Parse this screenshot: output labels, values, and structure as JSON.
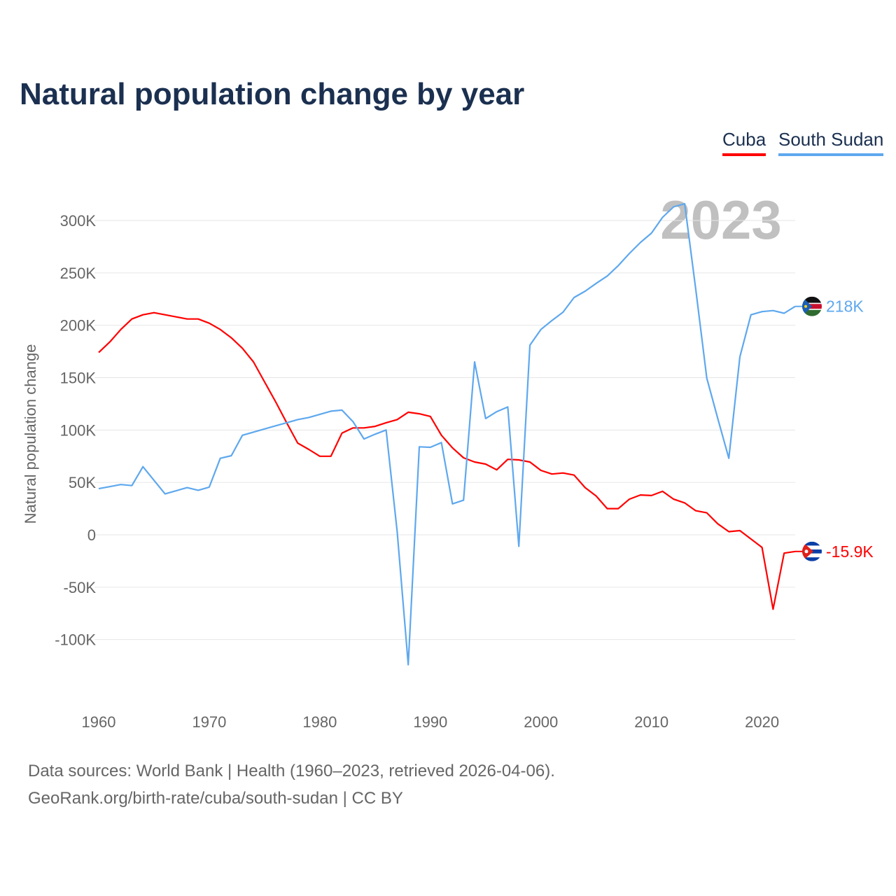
{
  "title": "Natural population change by year",
  "legend": [
    {
      "label": "Cuba",
      "color": "#ff0000"
    },
    {
      "label": "South Sudan",
      "color": "#5ea8ee"
    }
  ],
  "footer": {
    "line1": "Data sources: World Bank | Health (1960–2023, retrieved 2026-04-06).",
    "line2": "GeoRank.org/birth-rate/cuba/south-sudan | CC BY"
  },
  "chart_data": {
    "type": "line",
    "title": "Natural population change by year",
    "xlabel": "",
    "ylabel": "Natural population change",
    "year_watermark": "2023",
    "xlim": [
      1960,
      2023
    ],
    "ylim": [
      -125000,
      320000
    ],
    "x_ticks": [
      1960,
      1970,
      1980,
      1990,
      2000,
      2010,
      2020
    ],
    "x_tick_labels": [
      "1960",
      "1970",
      "1980",
      "1990",
      "2000",
      "2010",
      "2020"
    ],
    "y_ticks": [
      -100000,
      -50000,
      0,
      50000,
      100000,
      150000,
      200000,
      250000,
      300000
    ],
    "y_tick_labels": [
      "-100K",
      "-50K",
      "0",
      "50K",
      "100K",
      "150K",
      "200K",
      "250K",
      "300K"
    ],
    "grid": true,
    "legend_position": "top-right",
    "x_start": 1960,
    "series": [
      {
        "name": "Cuba",
        "color": "#ff0000",
        "end_label": "-15.9K",
        "flag": "cuba-flag",
        "values": [
          174000,
          184000,
          196000,
          206000,
          210000,
          212000,
          210000,
          208000,
          206000,
          206000,
          202000,
          196000,
          188000,
          178000,
          165000,
          146000,
          127000,
          107000,
          87500,
          81500,
          75000,
          75000,
          97000,
          102000,
          102000,
          103500,
          107000,
          110000,
          117000,
          115500,
          113000,
          95000,
          83000,
          73500,
          69500,
          67500,
          62000,
          72000,
          71500,
          69500,
          61500,
          58000,
          59000,
          57000,
          45000,
          37000,
          25000,
          25000,
          34000,
          38000,
          37500,
          41500,
          34000,
          30500,
          23000,
          21000,
          10500,
          3000,
          4000,
          -4000,
          -12000,
          -71000,
          -17500,
          -15900
        ]
      },
      {
        "name": "South Sudan",
        "color": "#5ea8ee",
        "end_label": "218K",
        "flag": "south-sudan-flag",
        "values": [
          44000,
          46000,
          48000,
          47000,
          65000,
          52000,
          39000,
          42000,
          45000,
          42500,
          45500,
          73000,
          75500,
          95000,
          98000,
          101000,
          104000,
          107000,
          110000,
          112000,
          115000,
          118000,
          119000,
          108000,
          91500,
          96000,
          100000,
          3000,
          -124000,
          84000,
          83500,
          88000,
          29500,
          33000,
          165000,
          111000,
          117500,
          122000,
          -11000,
          181000,
          196000,
          204500,
          212500,
          226500,
          232500,
          240000,
          247000,
          257000,
          268500,
          279000,
          288000,
          303000,
          313000,
          316000,
          234500,
          149500,
          111000,
          73000,
          170000,
          210000,
          213000,
          214000,
          211500,
          218000
        ]
      }
    ]
  }
}
